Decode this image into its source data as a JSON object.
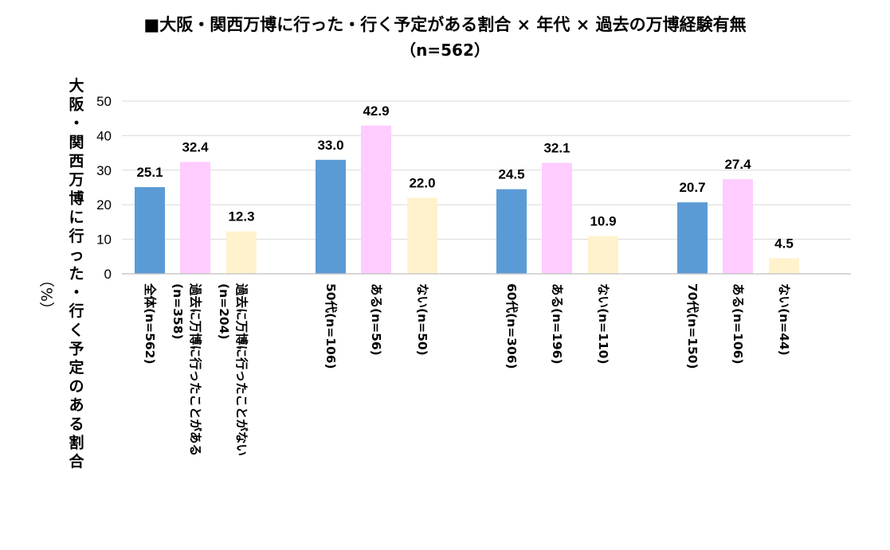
{
  "chart_data": {
    "type": "bar",
    "title": "■大阪・関西万博に行った・行く予定がある割合 × 年代 × 過去の万博経験有無",
    "subtitle": "（n=562）",
    "ylabel": "大阪・関西万博に行った・行く予定のある割合",
    "ylabel_unit": "（%）",
    "ylim": [
      0,
      50
    ],
    "yticks": [
      "0",
      "10",
      "20",
      "30",
      "40",
      "50"
    ],
    "grid": true,
    "colors": {
      "overall": "#5b9bd5",
      "yes": "#ffccff",
      "no": "#fff2cc",
      "gridline": "#d9d9d9",
      "axis": "#bfbfbf"
    },
    "groups": [
      {
        "bars": [
          {
            "label_lines": [
              "全体(n=562)"
            ],
            "value": 25.1,
            "value_label": "25.1",
            "kind": "overall"
          },
          {
            "label_lines": [
              "過去に万博に行ったことがある",
              "(n=358)"
            ],
            "value": 32.4,
            "value_label": "32.4",
            "kind": "yes"
          },
          {
            "label_lines": [
              "過去に万博に行ったことがない",
              "(n=204)"
            ],
            "value": 12.3,
            "value_label": "12.3",
            "kind": "no"
          }
        ]
      },
      {
        "bars": [
          {
            "label_lines": [
              "50代(n=106)"
            ],
            "value": 33.0,
            "value_label": "33.0",
            "kind": "overall"
          },
          {
            "label_lines": [
              "ある(n=56)"
            ],
            "value": 42.9,
            "value_label": "42.9",
            "kind": "yes"
          },
          {
            "label_lines": [
              "ない(n=50)"
            ],
            "value": 22.0,
            "value_label": "22.0",
            "kind": "no"
          }
        ]
      },
      {
        "bars": [
          {
            "label_lines": [
              "60代(n=306)"
            ],
            "value": 24.5,
            "value_label": "24.5",
            "kind": "overall"
          },
          {
            "label_lines": [
              "ある(n=196)"
            ],
            "value": 32.1,
            "value_label": "32.1",
            "kind": "yes"
          },
          {
            "label_lines": [
              "ない(n=110)"
            ],
            "value": 10.9,
            "value_label": "10.9",
            "kind": "no"
          }
        ]
      },
      {
        "bars": [
          {
            "label_lines": [
              "70代(n=150)"
            ],
            "value": 20.7,
            "value_label": "20.7",
            "kind": "overall"
          },
          {
            "label_lines": [
              "ある(n=106)"
            ],
            "value": 27.4,
            "value_label": "27.4",
            "kind": "yes"
          },
          {
            "label_lines": [
              "ない(n=44)"
            ],
            "value": 4.5,
            "value_label": "4.5",
            "kind": "no"
          }
        ]
      }
    ]
  }
}
